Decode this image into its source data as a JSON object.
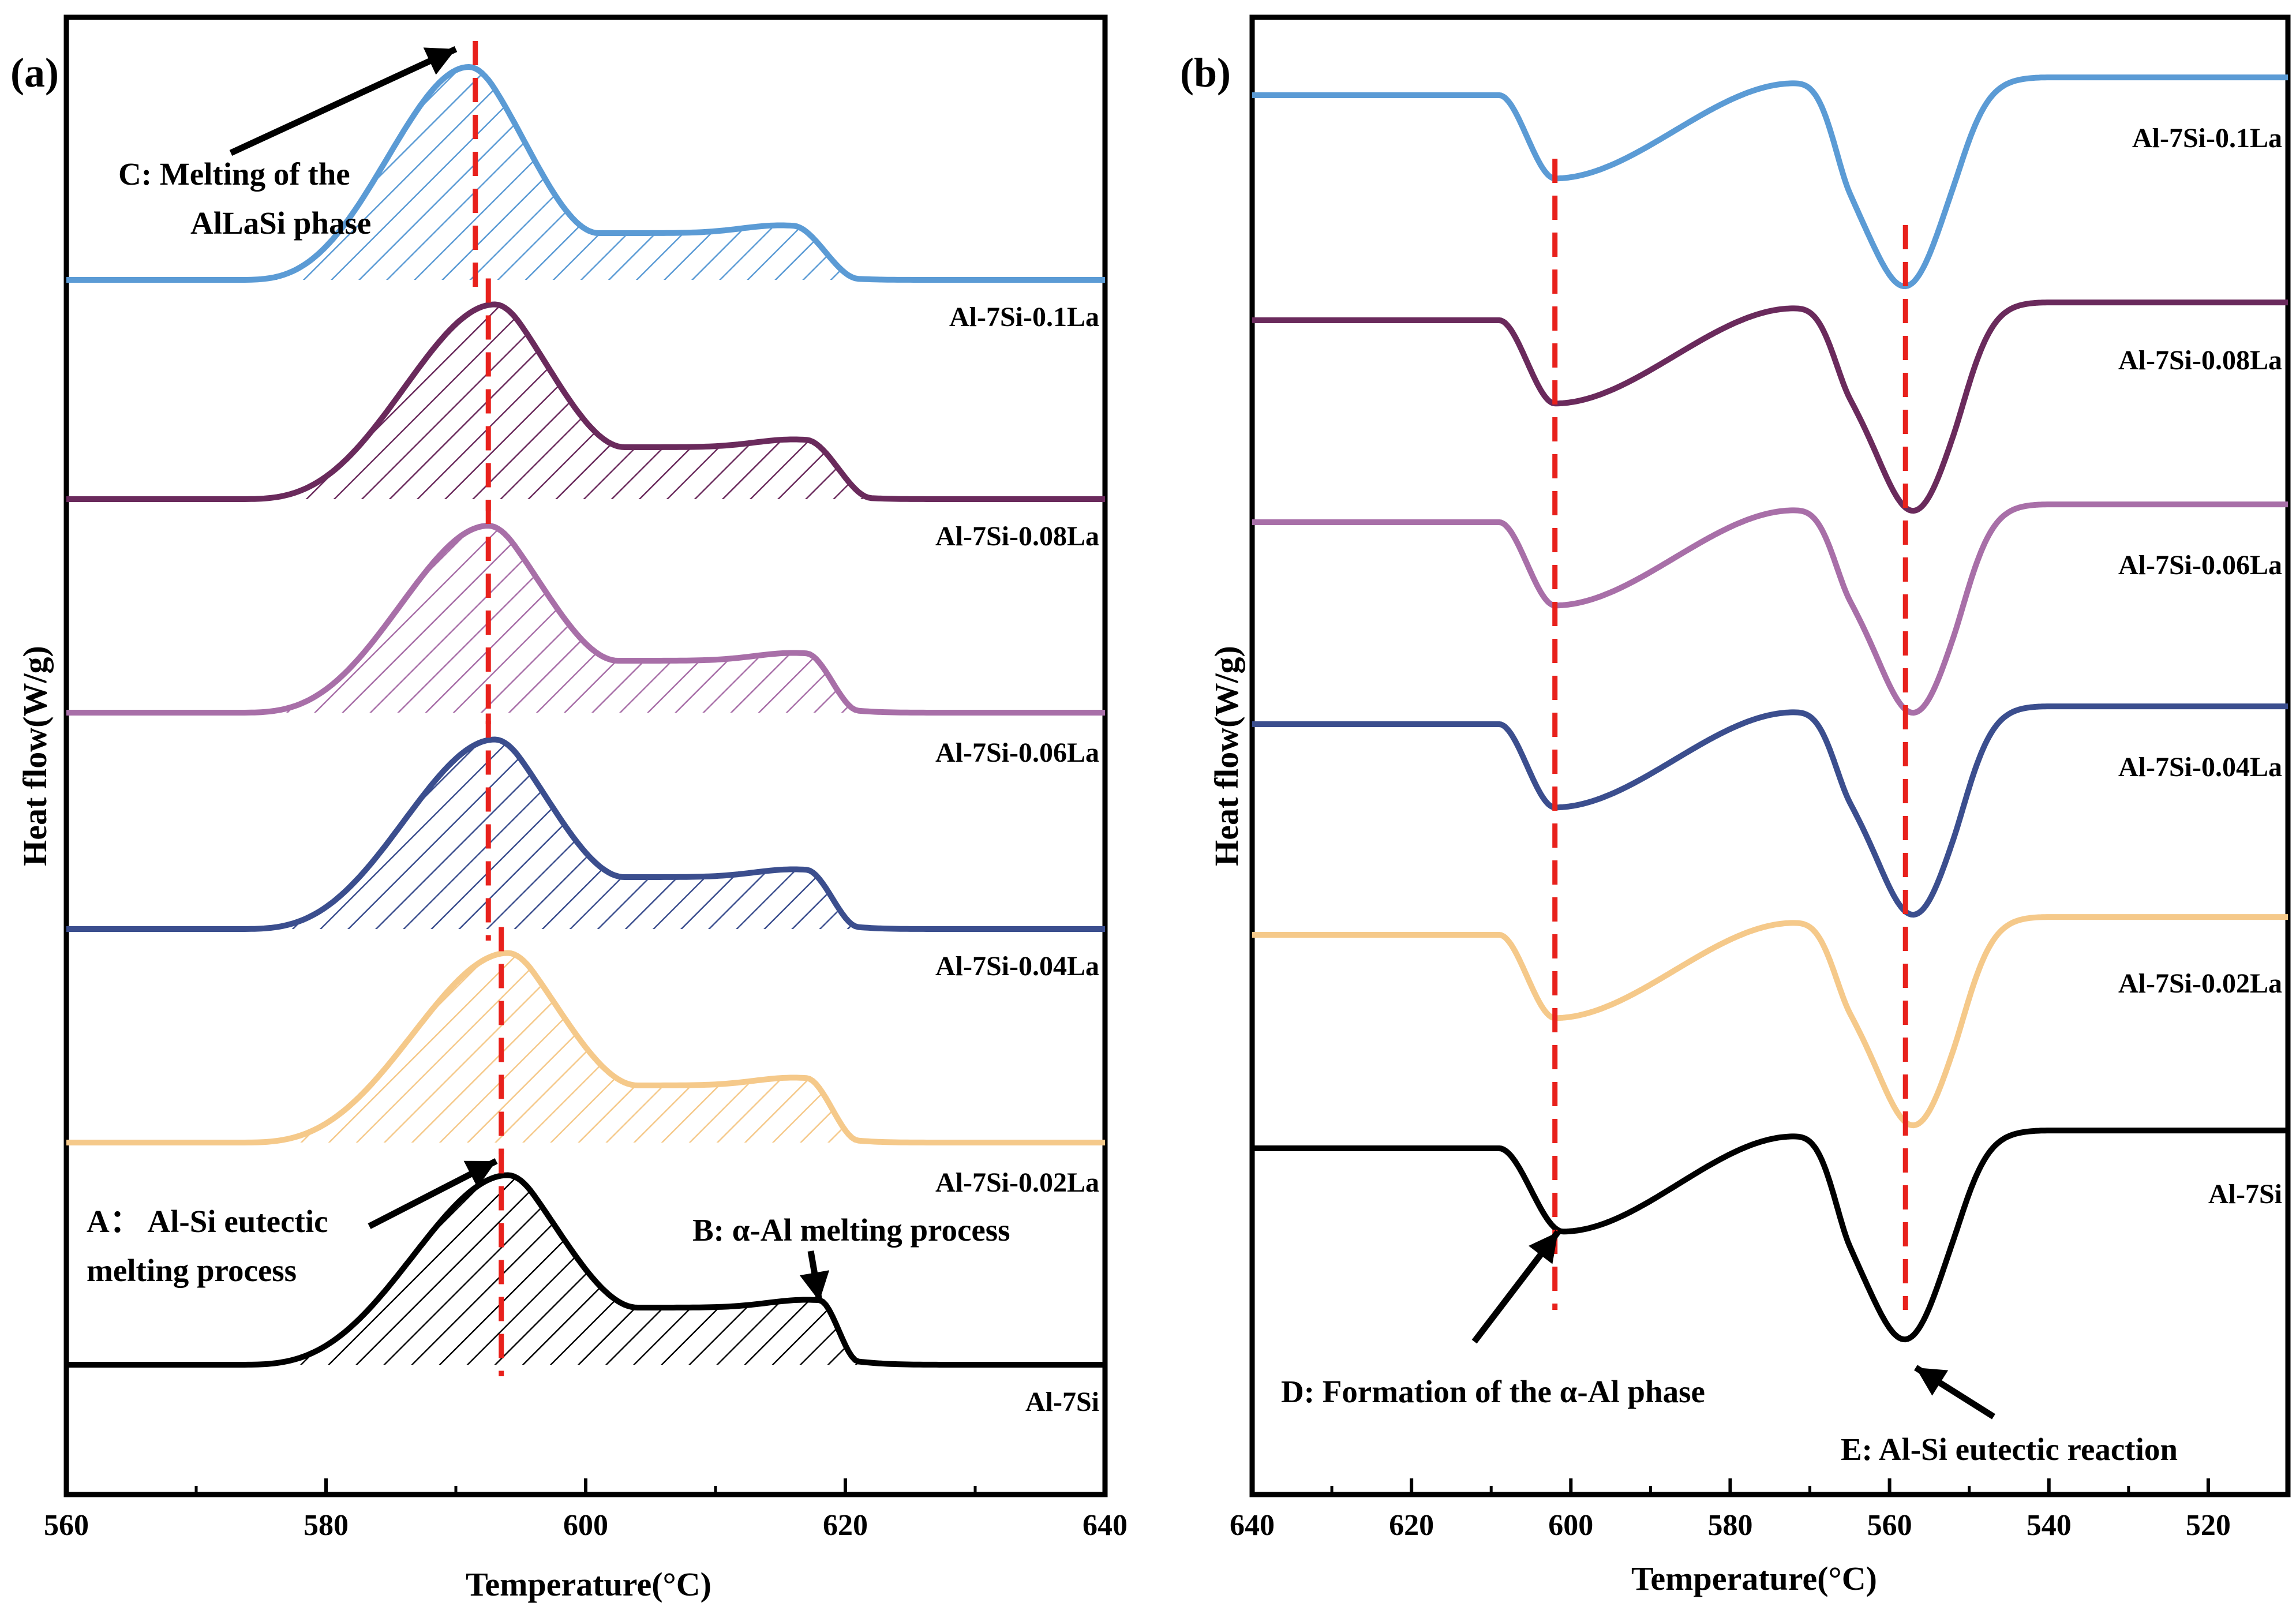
{
  "chart_data": [
    {
      "panel": "(a)",
      "type": "line",
      "xlabel": "Temperature(°C)",
      "ylabel": "Heat flow(W/g)",
      "xlim": [
        560,
        640
      ],
      "xticks": [
        560,
        580,
        600,
        620,
        640
      ],
      "reference_lines_x": [
        591.5,
        592.5,
        592.5,
        592.5,
        593.5,
        593.5
      ],
      "series": [
        {
          "name": "Al-7Si-0.1La",
          "color": "#5b9bd5",
          "onset": 573,
          "peak_x": 591,
          "peak": 0.82,
          "shoulder_x": 616,
          "shoulder": 0.18,
          "end": 621
        },
        {
          "name": "Al-7Si-0.08La",
          "color": "#6a2a5c",
          "onset": 573,
          "peak_x": 593,
          "peak": 0.75,
          "shoulder_x": 617,
          "shoulder": 0.2,
          "end": 622
        },
        {
          "name": "Al-7Si-0.06La",
          "color": "#a86fa8",
          "onset": 573,
          "peak_x": 592.5,
          "peak": 0.72,
          "shoulder_x": 617,
          "shoulder": 0.2,
          "end": 621
        },
        {
          "name": "Al-7Si-0.04La",
          "color": "#3b4e8e",
          "onset": 573,
          "peak_x": 593,
          "peak": 0.73,
          "shoulder_x": 617,
          "shoulder": 0.2,
          "end": 621
        },
        {
          "name": "Al-7Si-0.02La",
          "color": "#f5c98a",
          "onset": 573,
          "peak_x": 594,
          "peak": 0.73,
          "shoulder_x": 617,
          "shoulder": 0.22,
          "end": 621
        },
        {
          "name": "Al-7Si",
          "color": "#000000",
          "onset": 573,
          "peak_x": 594,
          "peak": 0.73,
          "shoulder_x": 618,
          "shoulder": 0.22,
          "end": 621
        }
      ],
      "annotations": {
        "A": {
          "line1": "A： Al-Si eutectic",
          "line2": "melting process"
        },
        "B": {
          "text": "B: α-Al melting process"
        },
        "C": {
          "line1": "C: Melting of the",
          "line2": "AlLaSi phase"
        }
      }
    },
    {
      "panel": "(b)",
      "type": "line",
      "xlabel": "Temperature(°C)",
      "ylabel": "Heat flow(W/g)",
      "xlim": [
        640,
        510
      ],
      "xticks": [
        640,
        620,
        600,
        580,
        560,
        540,
        520
      ],
      "reference_lines_x": [
        602,
        558
      ],
      "series": [
        {
          "name": "Al-7Si-0.1La",
          "color": "#5b9bd5",
          "dip1_x": 602,
          "dip1": 0.14,
          "dip2_x": 558,
          "dip2": 0.34
        },
        {
          "name": "Al-7Si-0.08La",
          "color": "#6a2a5c",
          "dip1_x": 602,
          "dip1": 0.14,
          "dip2_x": 557,
          "dip2": 0.34
        },
        {
          "name": "Al-7Si-0.06La",
          "color": "#a86fa8",
          "dip1_x": 602,
          "dip1": 0.14,
          "dip2_x": 557,
          "dip2": 0.34
        },
        {
          "name": "Al-7Si-0.04La",
          "color": "#3b4e8e",
          "dip1_x": 602,
          "dip1": 0.14,
          "dip2_x": 557,
          "dip2": 0.34
        },
        {
          "name": "Al-7Si-0.02La",
          "color": "#f5c98a",
          "dip1_x": 602,
          "dip1": 0.14,
          "dip2_x": 557,
          "dip2": 0.34
        },
        {
          "name": "Al-7Si",
          "color": "#000000",
          "dip1_x": 601,
          "dip1": 0.14,
          "dip2_x": 558,
          "dip2": 0.34
        }
      ],
      "annotations": {
        "D": {
          "text": "D: Formation of the α-Al phase"
        },
        "E": {
          "text": "E: Al-Si eutectic reaction"
        }
      }
    }
  ]
}
